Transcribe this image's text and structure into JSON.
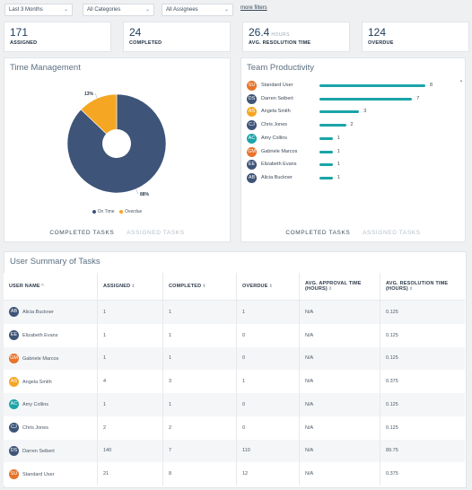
{
  "filters": {
    "range": "Last 3 Months",
    "categories": "All Categories",
    "assignees": "All Assignees",
    "more": "more filters"
  },
  "kpis": [
    {
      "value": "171",
      "label": "ASSIGNED",
      "unit": ""
    },
    {
      "value": "24",
      "label": "COMPLETED",
      "unit": ""
    },
    {
      "value": "26.4",
      "label": "AVG. RESOLUTION TIME",
      "unit": "HOURS"
    },
    {
      "value": "124",
      "label": "OVERDUE",
      "unit": ""
    }
  ],
  "time_management": {
    "title": "Time Management",
    "tabs": [
      "COMPLETED TASKS",
      "ASSIGNED TASKS"
    ],
    "chart_data": {
      "type": "pie",
      "categories": [
        "On Time",
        "Overdue"
      ],
      "values": [
        88,
        13
      ],
      "labels": [
        "88%",
        "13%"
      ],
      "colors": [
        "#3e5478",
        "#f5a623"
      ],
      "legend": [
        "On Time",
        "Overdue"
      ],
      "donut": true
    }
  },
  "team_productivity": {
    "title": "Team Productivity",
    "tabs": [
      "COMPLETED TASKS",
      "ASSIGNED TASKS"
    ],
    "chart_data": {
      "type": "bar",
      "orientation": "horizontal",
      "categories": [
        "Standard User",
        "Darren Seibert",
        "Angela Smith",
        "Chris Jones",
        "Amy Collins",
        "Gabriele Marcos",
        "Elizabeth Evans",
        "Alicia Buckner"
      ],
      "values": [
        8,
        7,
        3,
        2,
        1,
        1,
        1,
        1
      ],
      "initials": [
        "SU",
        "DS",
        "AS",
        "CJ",
        "AC",
        "GM",
        "EE",
        "AB"
      ],
      "avatar_colors": [
        "#e8732a",
        "#3e5478",
        "#f5a623",
        "#3e5478",
        "#1aa4a8",
        "#e8732a",
        "#3e5478",
        "#3e5478"
      ],
      "bar_color": "#1aa4a8",
      "xlim": [
        0,
        8
      ]
    }
  },
  "summary": {
    "title": "User Summary of Tasks",
    "columns": [
      "USER NAME",
      "ASSIGNED",
      "COMPLETED",
      "OVERDUE",
      "AVG. APPROVAL TIME (HOURS)",
      "AVG. RESOLUTION TIME (HOURS)"
    ],
    "sort_glyphs": [
      "^",
      "⇕",
      "⇕",
      "⇕",
      "⇕",
      "⇕"
    ],
    "rows": [
      {
        "initials": "AB",
        "color": "#3e5478",
        "name": "Alicia Buckner",
        "assigned": "1",
        "completed": "1",
        "overdue": "1",
        "approval": "N/A",
        "resolution": "0.125"
      },
      {
        "initials": "EE",
        "color": "#3e5478",
        "name": "Elizabeth Evans",
        "assigned": "1",
        "completed": "1",
        "overdue": "0",
        "approval": "N/A",
        "resolution": "0.125"
      },
      {
        "initials": "GM",
        "color": "#e8732a",
        "name": "Gabriele Marcos",
        "assigned": "1",
        "completed": "1",
        "overdue": "0",
        "approval": "N/A",
        "resolution": "0.125"
      },
      {
        "initials": "AS",
        "color": "#f5a623",
        "name": "Angela Smith",
        "assigned": "4",
        "completed": "3",
        "overdue": "1",
        "approval": "N/A",
        "resolution": "0.375"
      },
      {
        "initials": "AC",
        "color": "#1aa4a8",
        "name": "Amy Collins",
        "assigned": "1",
        "completed": "1",
        "overdue": "0",
        "approval": "N/A",
        "resolution": "0.125"
      },
      {
        "initials": "CJ",
        "color": "#3e5478",
        "name": "Chris Jones",
        "assigned": "2",
        "completed": "2",
        "overdue": "0",
        "approval": "N/A",
        "resolution": "0.125"
      },
      {
        "initials": "DS",
        "color": "#3e5478",
        "name": "Darren Seibert",
        "assigned": "140",
        "completed": "7",
        "overdue": "110",
        "approval": "N/A",
        "resolution": "89.75"
      },
      {
        "initials": "SU",
        "color": "#e8732a",
        "name": "Standard User",
        "assigned": "21",
        "completed": "8",
        "overdue": "12",
        "approval": "N/A",
        "resolution": "0.375"
      }
    ]
  }
}
